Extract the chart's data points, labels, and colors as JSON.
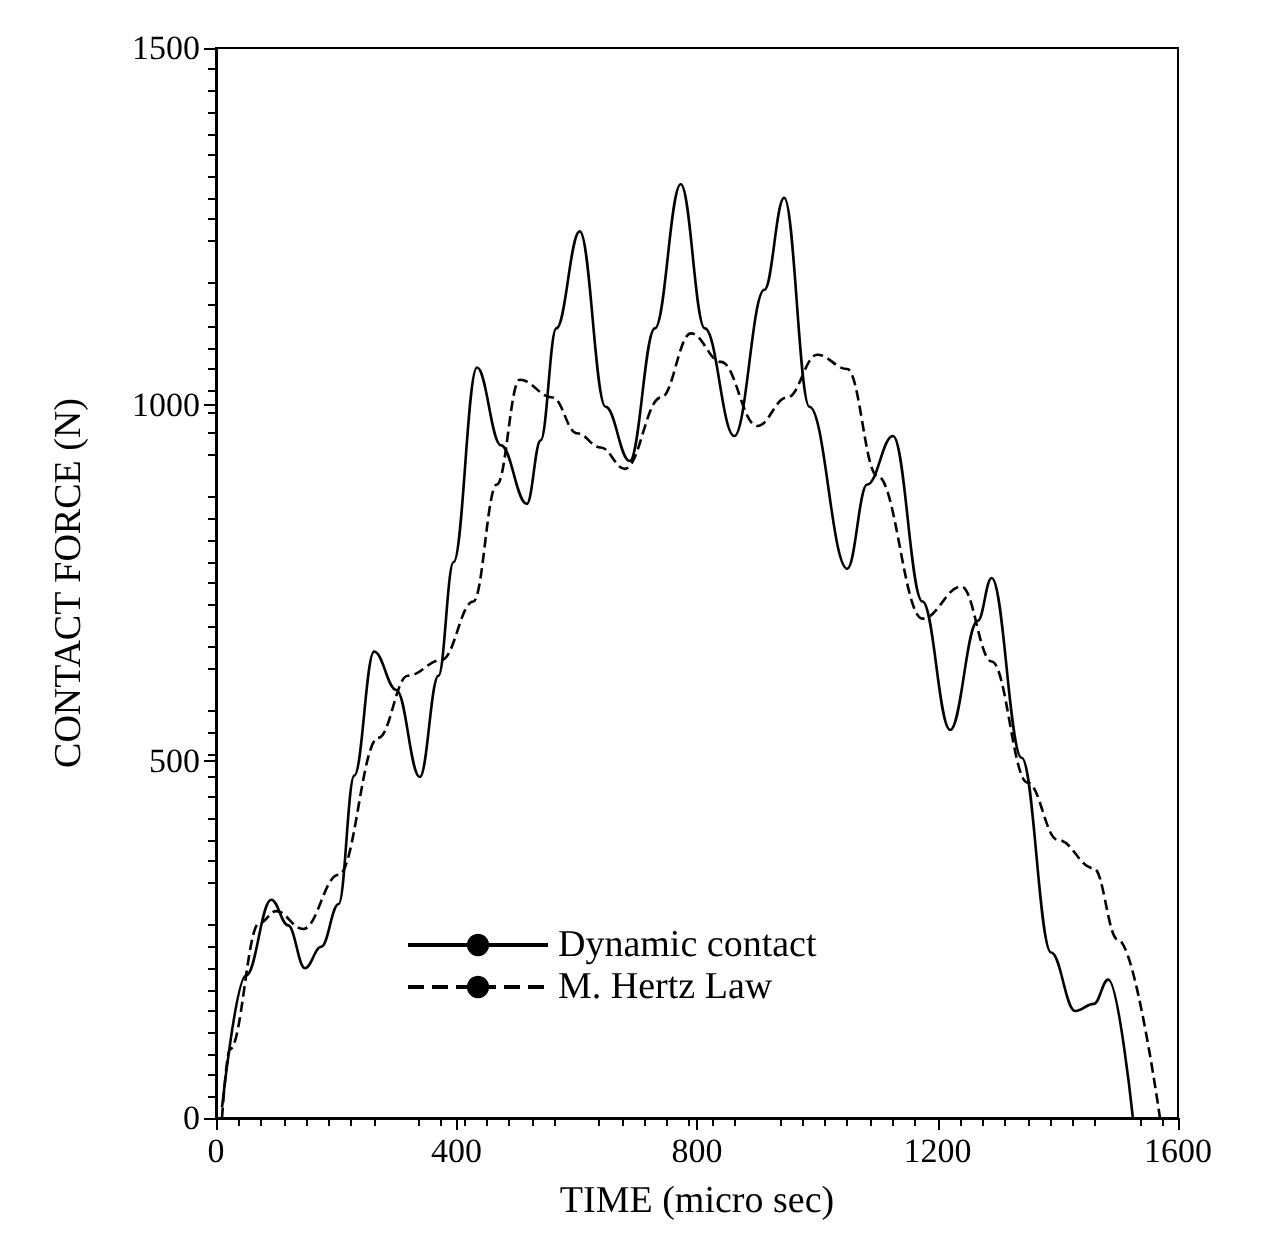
{
  "chart_data": {
    "type": "line",
    "xlabel": "TIME (micro sec)",
    "ylabel": "CONTACT FORCE (N)",
    "xlim": [
      0,
      1600
    ],
    "xticks": [
      0,
      400,
      800,
      1200,
      1600
    ],
    "ylim": [
      0,
      1500
    ],
    "yticks": [
      0,
      500,
      1000,
      1500
    ],
    "grid": false,
    "legend": "bottom",
    "marker": "none",
    "series": [
      {
        "name": "Dynamic contact",
        "color": "#000000",
        "line_style": "solid",
        "x": [
          10,
          50,
          92,
          120,
          148,
          175,
          204,
          230,
          263,
          300,
          339,
          370,
          395,
          434,
          474,
          517,
          540,
          566,
          605,
          648,
          688,
          730,
          773,
          813,
          862,
          912,
          945,
          987,
          1050,
          1083,
          1126,
          1175,
          1221,
          1267,
          1290,
          1340,
          1389,
          1429,
          1460,
          1484,
          1525
        ],
        "values": [
          15,
          200,
          306,
          270,
          210,
          240,
          300,
          480,
          654,
          600,
          478,
          620,
          779,
          1052,
          943,
          861,
          950,
          1107,
          1243,
          997,
          921,
          1107,
          1309,
          1107,
          956,
          1161,
          1290,
          997,
          770,
          888,
          956,
          724,
          544,
          697,
          757,
          505,
          232,
          150,
          160,
          194,
          0
        ]
      },
      {
        "name": "M. Hertz Law",
        "color": "#000000",
        "line_style": "dashed",
        "x": [
          10,
          23,
          72,
          100,
          145,
          204,
          270,
          319,
          375,
          428,
          467,
          505,
          560,
          600,
          640,
          680,
          740,
          790,
          840,
          900,
          950,
          1000,
          1050,
          1100,
          1175,
          1240,
          1290,
          1350,
          1400,
          1460,
          1500,
          1570
        ],
        "values": [
          0,
          96,
          273,
          290,
          265,
          341,
          533,
          620,
          642,
          724,
          888,
          1035,
          1010,
          960,
          940,
          910,
          1010,
          1100,
          1060,
          970,
          1010,
          1070,
          1050,
          900,
          700,
          745,
          640,
          470,
          390,
          350,
          250,
          0
        ]
      }
    ]
  }
}
